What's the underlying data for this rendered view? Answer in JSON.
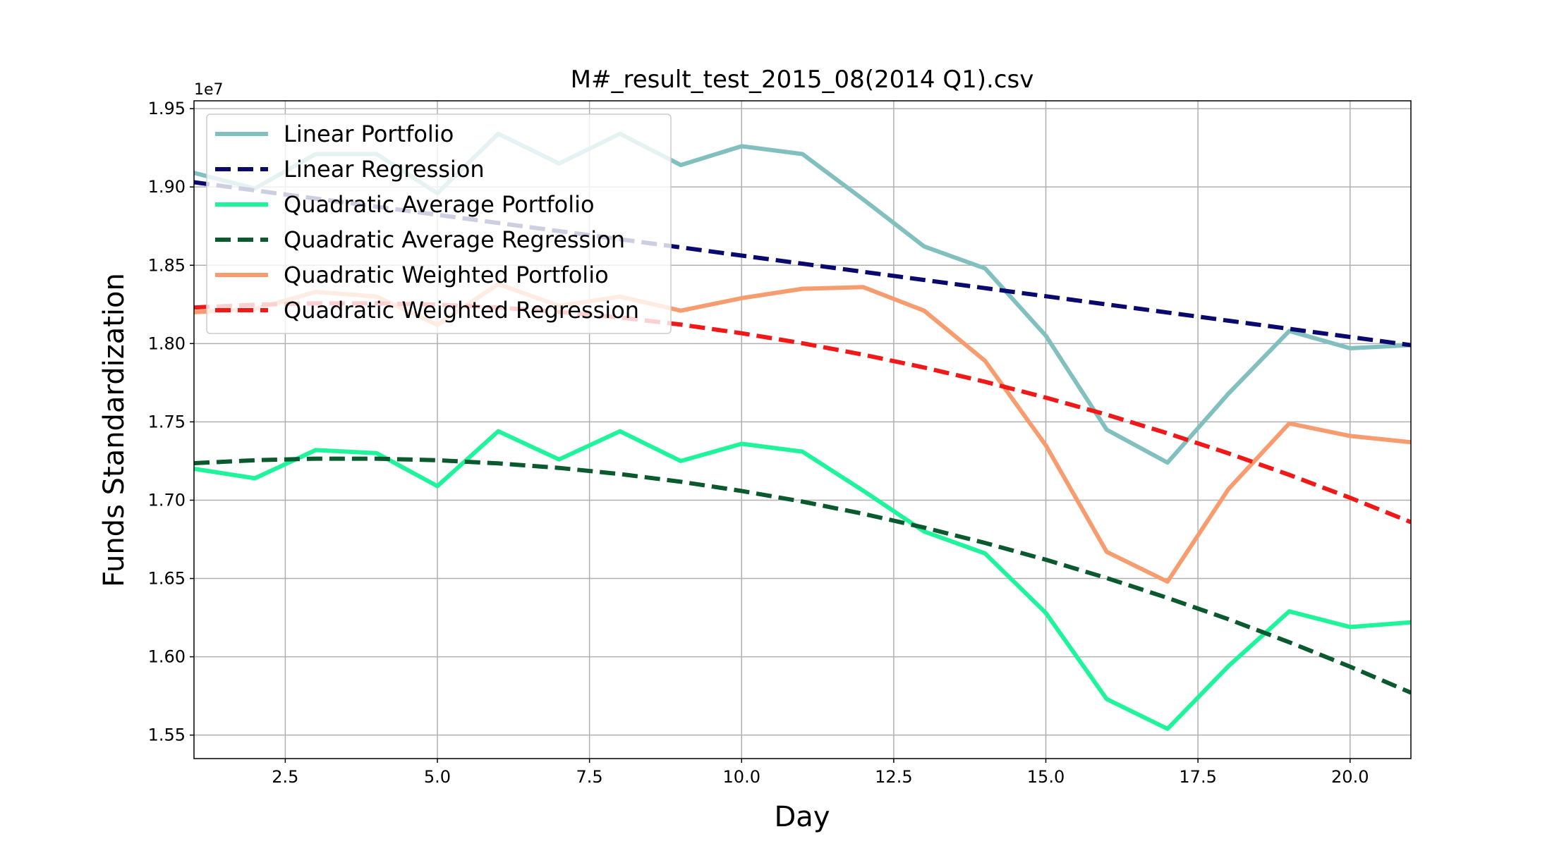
{
  "chart_data": {
    "type": "line",
    "title": "M#_result_test_2015_08(2014 Q1).csv",
    "xlabel": "Day",
    "ylabel": "Funds Standardization",
    "y_offset_label": "1e7",
    "xlim": [
      1,
      21
    ],
    "ylim": [
      1.535,
      1.955
    ],
    "xticks": [
      2.5,
      5.0,
      7.5,
      10.0,
      12.5,
      15.0,
      17.5,
      20.0
    ],
    "xtick_labels": [
      "2.5",
      "5.0",
      "7.5",
      "10.0",
      "12.5",
      "15.0",
      "17.5",
      "20.0"
    ],
    "yticks": [
      1.55,
      1.6,
      1.65,
      1.7,
      1.75,
      1.8,
      1.85,
      1.9,
      1.95
    ],
    "ytick_labels": [
      "1.55",
      "1.60",
      "1.65",
      "1.70",
      "1.75",
      "1.80",
      "1.85",
      "1.90",
      "1.95"
    ],
    "grid": true,
    "legend_position": "upper-left",
    "x": [
      1,
      2,
      3,
      4,
      5,
      6,
      7,
      8,
      9,
      10,
      11,
      12,
      13,
      14,
      15,
      16,
      17,
      18,
      19,
      20,
      21
    ],
    "series": [
      {
        "name": "Linear Portfolio",
        "color": "#82bfbf",
        "dash": "solid",
        "values": [
          1.909,
          1.899,
          1.921,
          1.921,
          1.896,
          1.934,
          1.915,
          1.934,
          1.914,
          1.926,
          1.921,
          1.892,
          1.862,
          1.848,
          1.805,
          1.745,
          1.724,
          1.768,
          1.808,
          1.797,
          1.799
        ]
      },
      {
        "name": "Linear Regression",
        "color": "#0a0a6e",
        "dash": "dashed",
        "values": [
          1.903,
          1.8978,
          1.8926,
          1.8874,
          1.8822,
          1.877,
          1.8718,
          1.8666,
          1.8614,
          1.8562,
          1.851,
          1.8458,
          1.8406,
          1.8354,
          1.8302,
          1.825,
          1.8198,
          1.8146,
          1.8094,
          1.8042,
          1.799
        ]
      },
      {
        "name": "Quadratic Average Portfolio",
        "color": "#1ef59a",
        "dash": "solid",
        "values": [
          1.72,
          1.714,
          1.732,
          1.73,
          1.709,
          1.744,
          1.726,
          1.744,
          1.725,
          1.736,
          1.731,
          1.706,
          1.68,
          1.666,
          1.628,
          1.573,
          1.554,
          1.594,
          1.629,
          1.619,
          1.622
        ]
      },
      {
        "name": "Quadratic Average Regression",
        "color": "#0a5a2e",
        "dash": "dashed",
        "values": [
          1.7236,
          1.7255,
          1.7265,
          1.7265,
          1.7255,
          1.7235,
          1.7206,
          1.7167,
          1.7118,
          1.7059,
          1.6991,
          1.6913,
          1.6825,
          1.6727,
          1.662,
          1.6503,
          1.6376,
          1.624,
          1.6093,
          1.5937,
          1.5771
        ]
      },
      {
        "name": "Quadratic Weighted Portfolio",
        "color": "#f79c6e",
        "dash": "solid",
        "values": [
          1.82,
          1.822,
          1.833,
          1.83,
          1.812,
          1.838,
          1.824,
          1.83,
          1.821,
          1.829,
          1.835,
          1.836,
          1.821,
          1.789,
          1.735,
          1.667,
          1.648,
          1.707,
          1.749,
          1.741,
          1.737
        ]
      },
      {
        "name": "Quadratic Weighted Regression",
        "color": "#f21818",
        "dash": "dashed",
        "values": [
          1.823,
          1.8248,
          1.8257,
          1.8257,
          1.8248,
          1.823,
          1.8202,
          1.8166,
          1.8121,
          1.8066,
          1.8002,
          1.7929,
          1.7847,
          1.7756,
          1.7655,
          1.7546,
          1.7427,
          1.7299,
          1.7162,
          1.7015,
          1.686
        ]
      }
    ]
  }
}
